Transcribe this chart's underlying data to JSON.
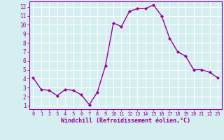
{
  "x": [
    0,
    1,
    2,
    3,
    4,
    5,
    6,
    7,
    8,
    9,
    10,
    11,
    12,
    13,
    14,
    15,
    16,
    17,
    18,
    19,
    20,
    21,
    22,
    23
  ],
  "y": [
    4.1,
    2.8,
    2.7,
    2.1,
    2.8,
    2.7,
    2.2,
    1.1,
    2.5,
    5.4,
    10.2,
    9.8,
    11.5,
    11.8,
    11.8,
    12.2,
    11.0,
    8.5,
    7.0,
    6.5,
    5.0,
    5.0,
    4.7,
    4.1
  ],
  "line_color": "#990099",
  "marker": "D",
  "marker_size": 2,
  "linewidth": 1.0,
  "bg_color": "#d5eef0",
  "grid_color": "#ffffff",
  "xlabel": "Windchill (Refroidissement éolien,°C)",
  "xlabel_color": "#990099",
  "tick_color": "#990099",
  "spine_color": "#990099",
  "ylim": [
    0.6,
    12.6
  ],
  "xlim": [
    -0.5,
    23.5
  ],
  "yticks": [
    1,
    2,
    3,
    4,
    5,
    6,
    7,
    8,
    9,
    10,
    11,
    12
  ],
  "xticks": [
    0,
    1,
    2,
    3,
    4,
    5,
    6,
    7,
    8,
    9,
    10,
    11,
    12,
    13,
    14,
    15,
    16,
    17,
    18,
    19,
    20,
    21,
    22,
    23
  ]
}
